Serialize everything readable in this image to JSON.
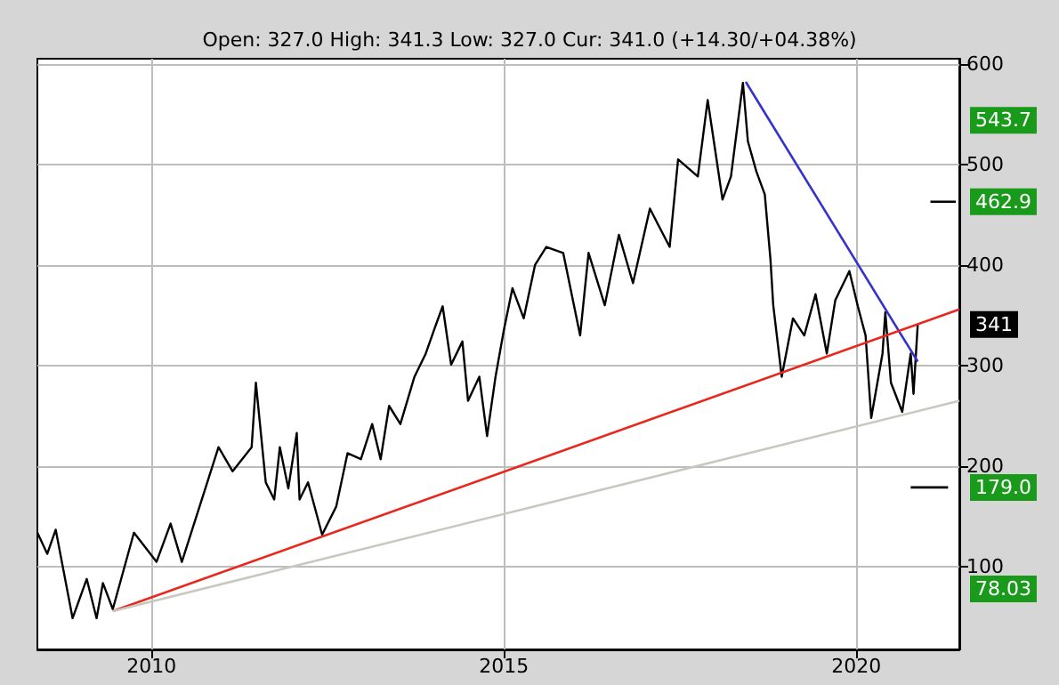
{
  "chart_data": {
    "type": "line",
    "title": "Open: 327.0 High: 341.3 Low: 327.0 Cur: 341.0 (+14.30/+04.38%)",
    "xlim": [
      2008.38,
      2021.46
    ],
    "xticks": [
      2010,
      2015,
      2020
    ],
    "ylim": [
      18,
      605
    ],
    "yticks": [
      100,
      200,
      300,
      400,
      500,
      600
    ],
    "grid": true,
    "marker": "none",
    "line_style": "solid",
    "y2lim": [
      18,
      605
    ],
    "y2ticks": [
      {
        "value": 543.7,
        "label": "543.7"
      },
      {
        "value": 462.9,
        "label": "462.9"
      },
      {
        "value": 341,
        "label": "341"
      },
      {
        "value": 179.0,
        "label": "179.0"
      },
      {
        "value": 78.03,
        "label": "78.03"
      }
    ],
    "series": [
      {
        "color": "#000000",
        "x": [
          2008.38,
          2008.52,
          2008.64,
          2008.88,
          2009.08,
          2009.22,
          2009.31,
          2009.45,
          2009.75,
          2010.07,
          2010.27,
          2010.43,
          2010.95,
          2011.15,
          2011.42,
          2011.48,
          2011.62,
          2011.74,
          2011.82,
          2011.94,
          2012.06,
          2012.1,
          2012.22,
          2012.42,
          2012.62,
          2012.78,
          2012.97,
          2013.13,
          2013.25,
          2013.37,
          2013.53,
          2013.73,
          2013.89,
          2014.01,
          2014.13,
          2014.25,
          2014.41,
          2014.49,
          2014.65,
          2014.76,
          2014.88,
          2015.0,
          2015.12,
          2015.28,
          2015.44,
          2015.6,
          2015.84,
          2016.08,
          2016.2,
          2016.43,
          2016.63,
          2016.83,
          2017.07,
          2017.35,
          2017.47,
          2017.75,
          2017.89,
          2017.99,
          2018.1,
          2018.22,
          2018.39,
          2018.46,
          2018.58,
          2018.7,
          2018.78,
          2018.82,
          2018.94,
          2019.1,
          2019.26,
          2019.42,
          2019.58,
          2019.7,
          2019.9,
          2020.02,
          2020.13,
          2020.21,
          2020.37,
          2020.41,
          2020.49,
          2020.65,
          2020.77,
          2020.81,
          2020.87
        ],
        "values": [
          134,
          113,
          137,
          49,
          88,
          49,
          84,
          58,
          134,
          105,
          143,
          105,
          219,
          195,
          219,
          283,
          184,
          167,
          219,
          178,
          233,
          167,
          184,
          132,
          160,
          213,
          207,
          242,
          207,
          260,
          242,
          289,
          312,
          336,
          359,
          301,
          324,
          265,
          289,
          230,
          289,
          336,
          377,
          347,
          400,
          418,
          412,
          330,
          412,
          360,
          430,
          382,
          456,
          418,
          505,
          488,
          564,
          517,
          465,
          488,
          581,
          523,
          493,
          470,
          406,
          360,
          289,
          347,
          330,
          371,
          312,
          365,
          394,
          359,
          330,
          248,
          312,
          353,
          283,
          254,
          312,
          272,
          341
        ]
      },
      {
        "color": "#3333cc",
        "x": [
          2018.43,
          2020.87
        ],
        "values": [
          582,
          304
        ]
      },
      {
        "color": "#e8281e",
        "x": [
          2009.45,
          2021.46
        ],
        "values": [
          56,
          356
        ]
      },
      {
        "color": "#c8c8c0",
        "x": [
          2009.45,
          2021.46
        ],
        "values": [
          56,
          265
        ]
      },
      {
        "color": "#000000",
        "x": [
          2021.05,
          2021.41
        ],
        "values": [
          462.9,
          462.9
        ]
      },
      {
        "color": "#000000",
        "x": [
          2020.77,
          2021.3
        ],
        "values": [
          179.0,
          179.0
        ]
      }
    ]
  }
}
